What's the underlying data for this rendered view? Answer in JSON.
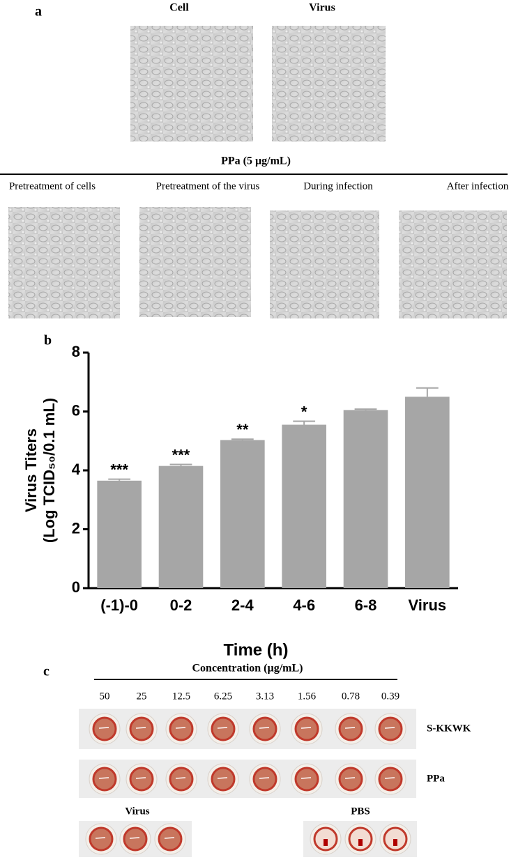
{
  "panel_a": {
    "label": "a",
    "top_labels": [
      "Cell",
      "Virus"
    ],
    "treatment_title": "PPa (5 µg/mL)",
    "treatments": [
      "Pretreatment of cells",
      "Pretreatment of the virus",
      "During infection",
      "After infection"
    ]
  },
  "chart_data": {
    "type": "bar",
    "panel_label": "b",
    "categories": [
      "(-1)-0",
      "0-2",
      "2-4",
      "4-6",
      "6-8",
      "Virus"
    ],
    "values": [
      3.65,
      4.15,
      5.03,
      5.55,
      6.05,
      6.5
    ],
    "errors": [
      0.05,
      0.05,
      0.03,
      0.12,
      0.03,
      0.3
    ],
    "annotations": [
      "***",
      "***",
      "**",
      "*",
      null,
      null
    ],
    "color": "#a6a6a6",
    "ylim": [
      0,
      8
    ],
    "yticks": [
      0,
      2,
      4,
      6,
      8
    ],
    "y_label": [
      "Virus Titers",
      "(Log TCID₅₀/0.1 mL)"
    ],
    "x_label": "Time (h)"
  },
  "panel_c": {
    "label": "c",
    "title": "Concentration (µg/mL)",
    "concentrations": [
      50,
      25,
      12.5,
      6.25,
      3.13,
      1.56,
      0.78,
      0.39
    ],
    "row_labels": [
      "S-KKWK",
      "PPa"
    ],
    "group_labels": [
      "Virus",
      "PBS"
    ]
  }
}
